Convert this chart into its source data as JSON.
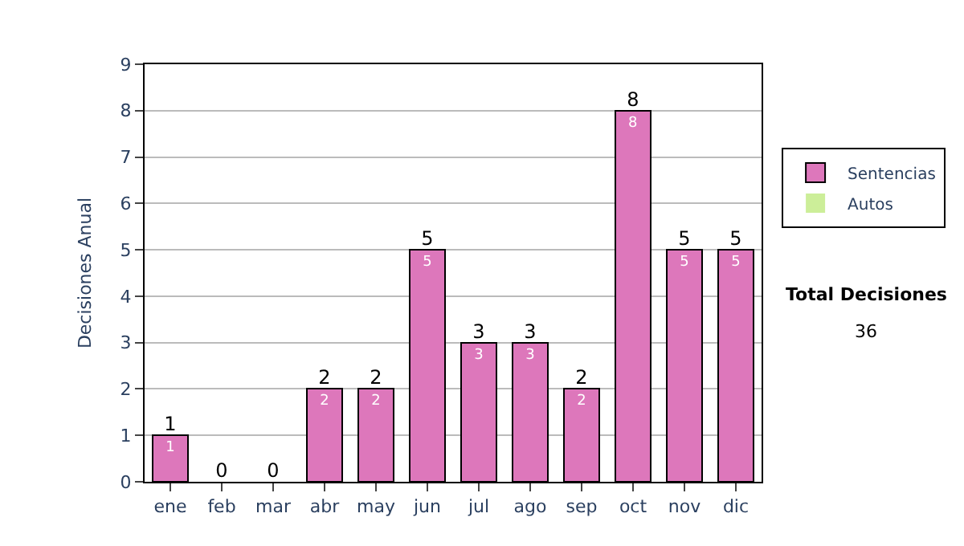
{
  "chart_data": {
    "type": "bar",
    "ylabel": "Decisiones Anual",
    "categories": [
      "ene",
      "feb",
      "mar",
      "abr",
      "may",
      "jun",
      "jul",
      "ago",
      "sep",
      "oct",
      "nov",
      "dic"
    ],
    "stacked": true,
    "series": [
      {
        "name": "Sentencias",
        "color": "#dd77bb",
        "values": [
          1,
          0,
          0,
          2,
          2,
          5,
          3,
          3,
          2,
          8,
          5,
          5
        ],
        "value_labels": [
          "1",
          null,
          null,
          "2",
          "2",
          "5",
          "3",
          "3",
          "2",
          "8",
          "5",
          "5"
        ]
      },
      {
        "name": "Autos",
        "color": "#ccee99",
        "values": [
          0,
          0,
          0,
          0,
          0,
          0,
          0,
          0,
          0,
          0,
          0,
          0
        ]
      }
    ],
    "totals": [
      "1",
      "0",
      "0",
      "2",
      "2",
      "5",
      "3",
      "3",
      "2",
      "8",
      "5",
      "5"
    ],
    "ylim": [
      0,
      9
    ],
    "yticks": [
      0,
      1,
      2,
      3,
      4,
      5,
      6,
      7,
      8,
      9
    ],
    "grid": "y",
    "legend": "right",
    "annotations": [
      "Total Decisiones",
      "36"
    ]
  }
}
